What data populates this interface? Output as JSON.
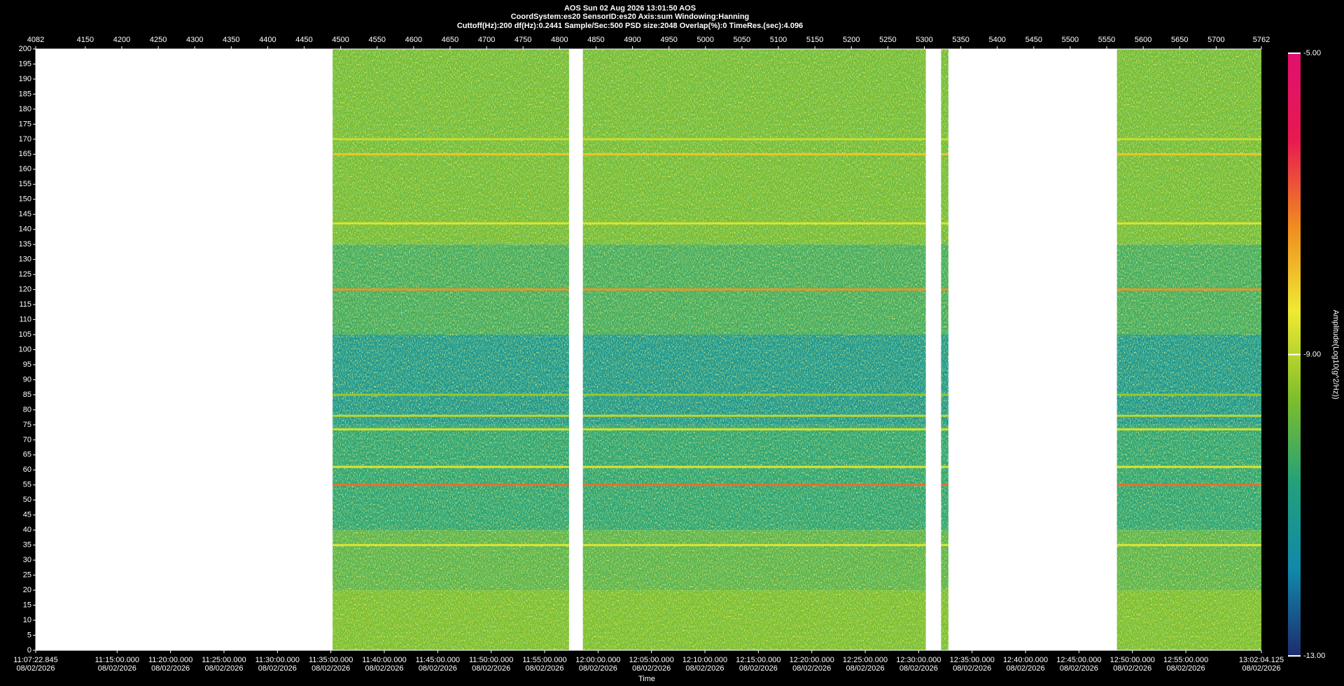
{
  "chart_data": {
    "type": "spectrogram",
    "title": "AOS  Sun 02 Aug 2026 13:01:50  AOS",
    "subtitle": "CoordSystem:es20   SensorID:es20   Axis:sum   Windowing:Hanning",
    "settings_line": "Cuttoff(Hz):200     df(Hz):0.2441     Sample/Sec:500     PSD size:2048     Overlap(%):0     TimeRes.(sec):4.096",
    "xlim": [
      4082,
      5762
    ],
    "xticks": [
      4082,
      4150,
      4200,
      4250,
      4300,
      4350,
      4400,
      4450,
      4500,
      4550,
      4600,
      4650,
      4700,
      4750,
      4800,
      4850,
      4900,
      4950,
      5000,
      5050,
      5100,
      5150,
      5200,
      5250,
      5300,
      5350,
      5400,
      5450,
      5500,
      5550,
      5600,
      5650,
      5700,
      5762
    ],
    "ylim": [
      0,
      200
    ],
    "yticks": [
      0,
      5,
      10,
      15,
      20,
      25,
      30,
      35,
      40,
      45,
      50,
      55,
      60,
      65,
      70,
      75,
      80,
      85,
      90,
      95,
      100,
      105,
      110,
      115,
      120,
      125,
      130,
      135,
      140,
      145,
      150,
      155,
      160,
      165,
      170,
      175,
      180,
      185,
      190,
      195,
      200
    ],
    "time_axis": {
      "label": "Time",
      "date": "08/02/2026",
      "lim": [
        40042.845,
        46924.125
      ],
      "ticks": [
        {
          "value": 40042.845,
          "label": "11:07:22.845"
        },
        {
          "value": 40500,
          "label": "11:15:00.000"
        },
        {
          "value": 40800,
          "label": "11:20:00.000"
        },
        {
          "value": 41100,
          "label": "11:25:00.000"
        },
        {
          "value": 41400,
          "label": "11:30:00.000"
        },
        {
          "value": 41700,
          "label": "11:35:00.000"
        },
        {
          "value": 42000,
          "label": "11:40:00.000"
        },
        {
          "value": 42300,
          "label": "11:45:00.000"
        },
        {
          "value": 42600,
          "label": "11:50:00.000"
        },
        {
          "value": 42900,
          "label": "11:55:00.000"
        },
        {
          "value": 43200,
          "label": "12:00:00.000"
        },
        {
          "value": 43500,
          "label": "12:05:00.000"
        },
        {
          "value": 43800,
          "label": "12:10:00.000"
        },
        {
          "value": 44100,
          "label": "12:15:00.000"
        },
        {
          "value": 44400,
          "label": "12:20:00.000"
        },
        {
          "value": 44700,
          "label": "12:25:00.000"
        },
        {
          "value": 45000,
          "label": "12:30:00.000"
        },
        {
          "value": 45300,
          "label": "12:35:00.000"
        },
        {
          "value": 45600,
          "label": "12:40:00.000"
        },
        {
          "value": 45900,
          "label": "12:45:00.000"
        },
        {
          "value": 46200,
          "label": "12:50:00.000"
        },
        {
          "value": 46500,
          "label": "12:55:00.000"
        },
        {
          "value": 46924.125,
          "label": "13:02:04.125"
        }
      ]
    },
    "segments": [
      [
        4489,
        4813
      ],
      [
        4832,
        5302
      ],
      [
        5323,
        5333
      ],
      [
        5564,
        5762
      ]
    ],
    "bands": [
      {
        "from": 0,
        "to": 20,
        "amplitude": -9.6
      },
      {
        "from": 20,
        "to": 40,
        "amplitude": -10.0
      },
      {
        "from": 40,
        "to": 75,
        "amplitude": -10.6
      },
      {
        "from": 75,
        "to": 105,
        "amplitude": -11.2
      },
      {
        "from": 105,
        "to": 135,
        "amplitude": -10.3
      },
      {
        "from": 135,
        "to": 200,
        "amplitude": -9.7
      }
    ],
    "lines": [
      {
        "freq": 170,
        "amplitude": -8.8
      },
      {
        "freq": 165,
        "amplitude": -8.0
      },
      {
        "freq": 142,
        "amplitude": -8.6
      },
      {
        "freq": 120,
        "amplitude": -7.4
      },
      {
        "freq": 85,
        "amplitude": -9.3
      },
      {
        "freq": 78,
        "amplitude": -8.9
      },
      {
        "freq": 73.5,
        "amplitude": -8.7
      },
      {
        "freq": 61,
        "amplitude": -8.6
      },
      {
        "freq": 55,
        "amplitude": -7.0
      },
      {
        "freq": 35,
        "amplitude": -8.6
      }
    ],
    "colorbar": {
      "label": "Amplitude(Log10(g^2/Hz))",
      "lim": [
        -13,
        -5
      ],
      "ticks": [
        {
          "value": -5,
          "label": "-5.00"
        },
        {
          "value": -9,
          "label": "-9.00"
        },
        {
          "value": -13,
          "label": "-13.00"
        }
      ],
      "colors": [
        "#1c2c6e",
        "#1188aa",
        "#22a07a",
        "#7fbf2a",
        "#f0ea30",
        "#f08a20",
        "#e81850",
        "#e01070"
      ]
    }
  }
}
